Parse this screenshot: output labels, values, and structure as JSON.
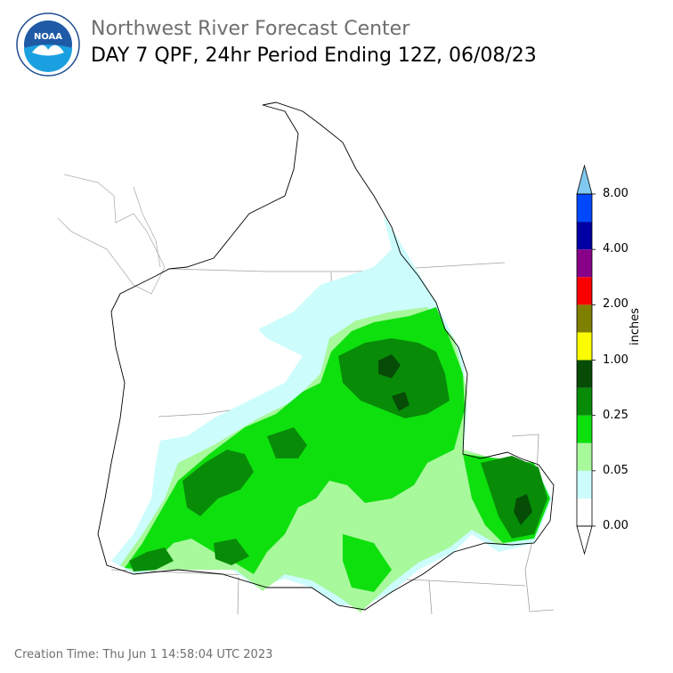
{
  "header": {
    "title": "Northwest River Forecast Center",
    "subtitle": "DAY 7 QPF, 24hr Period Ending 12Z, 06/08/23"
  },
  "logo": {
    "text": "NOAA",
    "icon": "noaa-logo-icon"
  },
  "legend": {
    "unit_label": "inches",
    "ticks": [
      "0.00",
      "0.05",
      "0.25",
      "1.00",
      "2.00",
      "4.00",
      "8.00"
    ],
    "colors": [
      "#ffffff",
      "#ccfcfc",
      "#a8f89c",
      "#0ee00e",
      "#088c08",
      "#064c06",
      "#fcfc00",
      "#7f7f00",
      "#fc0000",
      "#880088",
      "#0000a4",
      "#0048ff",
      "#80c8f0"
    ]
  },
  "map": {
    "colors": {
      "light_cyan": "#ccfcfc",
      "pale_green": "#a8f89c",
      "bright_green": "#0ee00e",
      "mid_green": "#088c08",
      "dark_green": "#064c06",
      "state_border": "#a0a0a0",
      "basin_border": "#000000"
    }
  },
  "footer": {
    "creation_time": "Creation Time: Thu Jun 1 14:58:04 UTC 2023"
  }
}
